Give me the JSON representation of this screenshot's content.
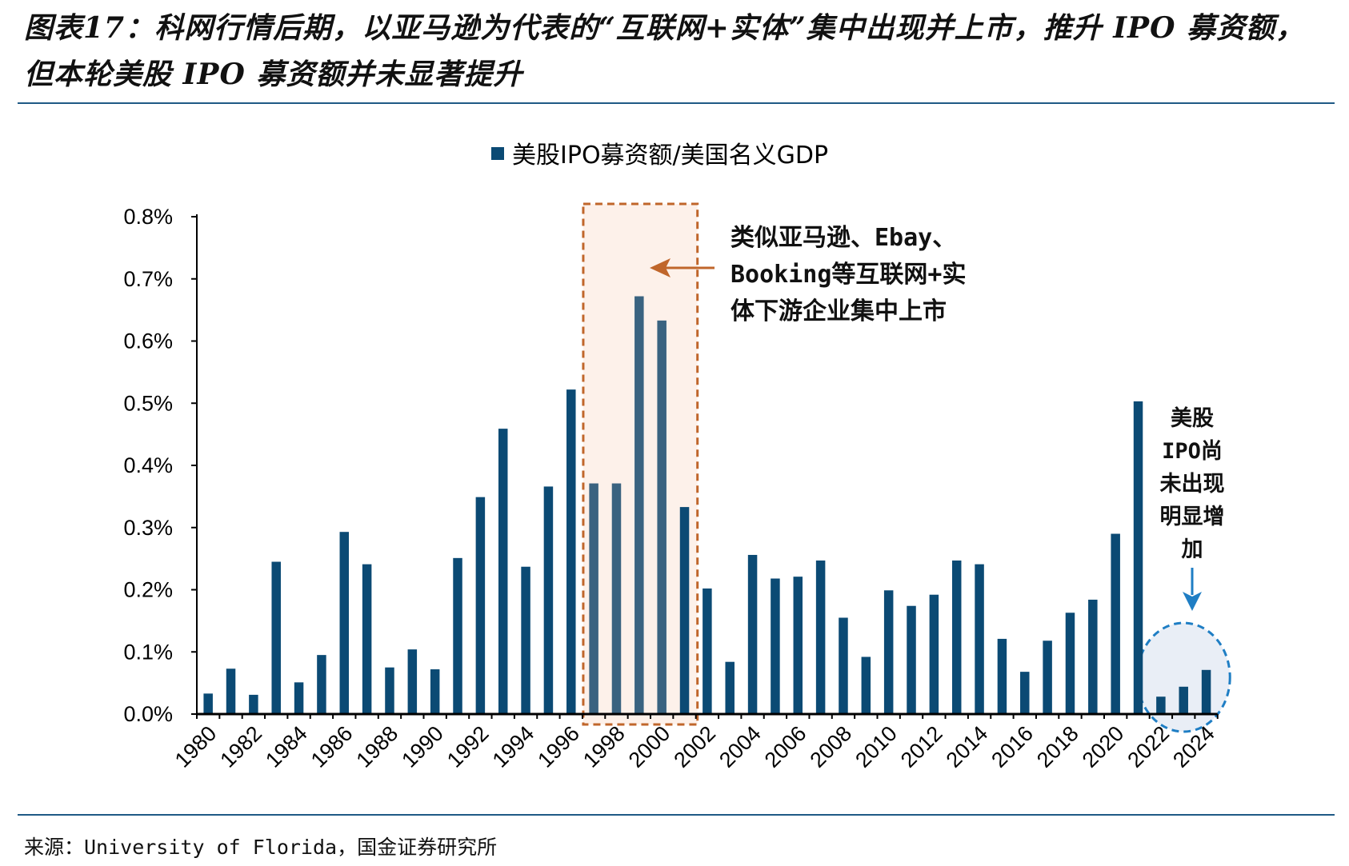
{
  "title": "图表17：科网行情后期，以亚马逊为代表的“互联网+实体”集中出现并上市，推升 IPO 募资额，但本轮美股 IPO 募资额并未显著提升",
  "source": "来源：University of Florida，国金证券研究所",
  "colors": {
    "bar": "#0b4a74",
    "bar_highlight": "#3a6380",
    "rule": "#1f5a85",
    "box_border": "#c0662b",
    "box_fill": "#fdf1ea",
    "circle_border": "#1f7ec4",
    "circle_fill": "#e9eef6",
    "arrow_orange": "#c0662b",
    "arrow_blue": "#1f7ec4"
  },
  "annotations": {
    "dotcom_lines": [
      "类似亚马逊、Ebay、",
      "Booking等互联网+实",
      "体下游企业集中上市"
    ],
    "recent_lines": [
      "美股",
      "IPO尚",
      "未出现",
      "明显增",
      "加"
    ]
  },
  "chart_data": {
    "type": "bar",
    "legend": "美股IPO募资额/美国名义GDP",
    "categories": [
      "1980",
      "1981",
      "1982",
      "1983",
      "1984",
      "1985",
      "1986",
      "1987",
      "1988",
      "1989",
      "1990",
      "1991",
      "1992",
      "1993",
      "1994",
      "1995",
      "1996",
      "1997",
      "1998",
      "1999",
      "2000",
      "2001",
      "2002",
      "2003",
      "2004",
      "2005",
      "2006",
      "2007",
      "2008",
      "2009",
      "2010",
      "2011",
      "2012",
      "2013",
      "2014",
      "2015",
      "2016",
      "2017",
      "2018",
      "2019",
      "2020",
      "2021",
      "2022",
      "2023",
      "2024"
    ],
    "x_tick_labels": [
      "1980",
      "1982",
      "1984",
      "1986",
      "1988",
      "1990",
      "1992",
      "1994",
      "1996",
      "1998",
      "2000",
      "2002",
      "2004",
      "2006",
      "2008",
      "2010",
      "2012",
      "2014",
      "2016",
      "2018",
      "2020",
      "2022",
      "2024"
    ],
    "values": [
      0.033,
      0.073,
      0.031,
      0.245,
      0.051,
      0.095,
      0.293,
      0.241,
      0.075,
      0.104,
      0.072,
      0.251,
      0.349,
      0.459,
      0.237,
      0.366,
      0.522,
      0.371,
      0.371,
      0.672,
      0.633,
      0.333,
      0.202,
      0.084,
      0.256,
      0.218,
      0.221,
      0.247,
      0.155,
      0.092,
      0.199,
      0.174,
      0.192,
      0.247,
      0.241,
      0.121,
      0.068,
      0.118,
      0.163,
      0.184,
      0.29,
      0.503,
      0.028,
      0.044,
      0.071
    ],
    "y_ticks": [
      "0.0%",
      "0.1%",
      "0.2%",
      "0.3%",
      "0.4%",
      "0.5%",
      "0.6%",
      "0.7%",
      "0.8%"
    ],
    "ylim": [
      0,
      0.8
    ],
    "y_unit": "%",
    "highlight_range": [
      "1997",
      "2001"
    ],
    "circle_range": [
      "2022",
      "2024"
    ]
  }
}
